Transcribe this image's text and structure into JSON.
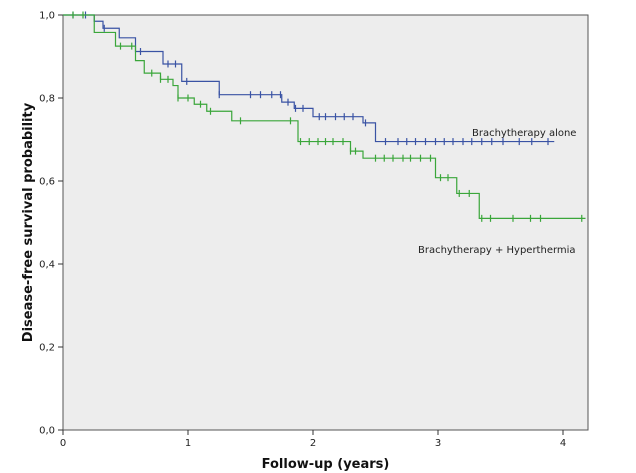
{
  "chart_data": {
    "type": "line",
    "subtype": "kaplan-meier-step",
    "xlabel": "Follow-up (years)",
    "ylabel": "Disease-free survival probability",
    "xlim": [
      0,
      4.2
    ],
    "ylim": [
      0,
      1
    ],
    "x_ticks": [
      0,
      1,
      2,
      3,
      4
    ],
    "x_tick_labels": [
      "0",
      "1",
      "2",
      "3",
      "4"
    ],
    "y_ticks": [
      0,
      0.2,
      0.4,
      0.6,
      0.8,
      1.0
    ],
    "y_tick_labels": [
      "0,0",
      "0,2",
      "0,4",
      "0,6",
      "0,8",
      "1,0"
    ],
    "plot_background": "#ededed",
    "grid": false,
    "series": [
      {
        "name": "Brachytherapy alone",
        "color": "#3a53a4",
        "steps": [
          [
            0,
            1.0
          ],
          [
            0.25,
            0.985
          ],
          [
            0.32,
            0.968
          ],
          [
            0.45,
            0.945
          ],
          [
            0.58,
            0.912
          ],
          [
            0.8,
            0.882
          ],
          [
            0.95,
            0.84
          ],
          [
            1.25,
            0.808
          ],
          [
            1.75,
            0.79
          ],
          [
            1.85,
            0.775
          ],
          [
            2.0,
            0.755
          ],
          [
            2.4,
            0.74
          ],
          [
            2.5,
            0.695
          ],
          [
            3.93,
            0.695
          ]
        ],
        "censor_x": [
          0.08,
          0.18,
          0.33,
          0.62,
          0.84,
          0.9,
          0.99,
          1.25,
          1.5,
          1.58,
          1.67,
          1.74,
          1.8,
          1.86,
          1.92,
          2.05,
          2.1,
          2.18,
          2.25,
          2.32,
          2.42,
          2.58,
          2.68,
          2.75,
          2.82,
          2.9,
          2.98,
          3.05,
          3.12,
          3.2,
          3.27,
          3.35,
          3.43,
          3.52,
          3.65,
          3.75,
          3.88
        ]
      },
      {
        "name": "Brachytherapy + Hyperthermia",
        "color": "#3aa63a",
        "steps": [
          [
            0,
            1.0
          ],
          [
            0.25,
            0.958
          ],
          [
            0.42,
            0.925
          ],
          [
            0.58,
            0.89
          ],
          [
            0.65,
            0.86
          ],
          [
            0.78,
            0.845
          ],
          [
            0.88,
            0.83
          ],
          [
            0.92,
            0.8
          ],
          [
            1.05,
            0.785
          ],
          [
            1.15,
            0.768
          ],
          [
            1.35,
            0.745
          ],
          [
            1.88,
            0.695
          ],
          [
            2.3,
            0.672
          ],
          [
            2.4,
            0.655
          ],
          [
            2.98,
            0.608
          ],
          [
            3.15,
            0.57
          ],
          [
            3.33,
            0.51
          ],
          [
            4.18,
            0.51
          ]
        ],
        "censor_x": [
          0.08,
          0.16,
          0.46,
          0.55,
          0.71,
          0.78,
          0.84,
          0.92,
          1.0,
          1.1,
          1.18,
          1.42,
          1.82,
          1.9,
          1.97,
          2.04,
          2.1,
          2.16,
          2.24,
          2.3,
          2.34,
          2.5,
          2.57,
          2.64,
          2.72,
          2.78,
          2.86,
          2.94,
          3.02,
          3.08,
          3.17,
          3.25,
          3.35,
          3.42,
          3.6,
          3.74,
          3.82,
          4.15
        ]
      }
    ],
    "annotations": [
      "Brachytherapy alone",
      "Brachytherapy + Hyperthermia"
    ]
  }
}
